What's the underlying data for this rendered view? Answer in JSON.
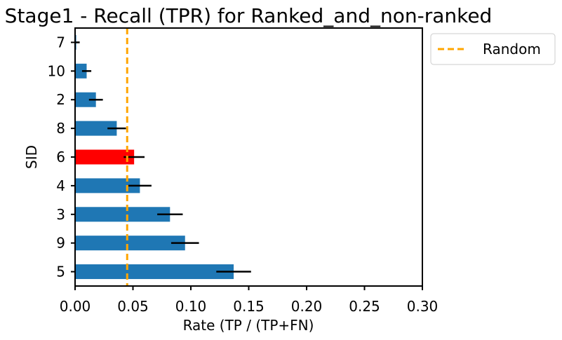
{
  "chart_data": {
    "type": "bar",
    "orientation": "horizontal",
    "title": "Stage1 - Recall (TPR) for Ranked_and_non-ranked",
    "xlabel": "Rate (TP / (TP+FN)",
    "ylabel": "SID",
    "xlim": [
      0,
      0.3
    ],
    "xticks": [
      "0.00",
      "0.05",
      "0.10",
      "0.15",
      "0.20",
      "0.25",
      "0.30"
    ],
    "categories": [
      "5",
      "9",
      "3",
      "4",
      "6",
      "8",
      "2",
      "10",
      "7"
    ],
    "values": [
      0.137,
      0.095,
      0.082,
      0.056,
      0.051,
      0.036,
      0.018,
      0.01,
      0.001
    ],
    "errors": [
      0.015,
      0.012,
      0.011,
      0.01,
      0.009,
      0.008,
      0.006,
      0.004,
      0.003
    ],
    "highlight_category": "6",
    "colors": {
      "bar": "#1f77b4",
      "highlight": "#ff0000",
      "error": "#000000",
      "reference": "#ffa500"
    },
    "reference_line": {
      "label": "Random",
      "x": 0.045,
      "style": "dashed"
    },
    "legend": {
      "position": "outside-top-right",
      "entries": [
        "Random"
      ]
    },
    "grid": false
  }
}
